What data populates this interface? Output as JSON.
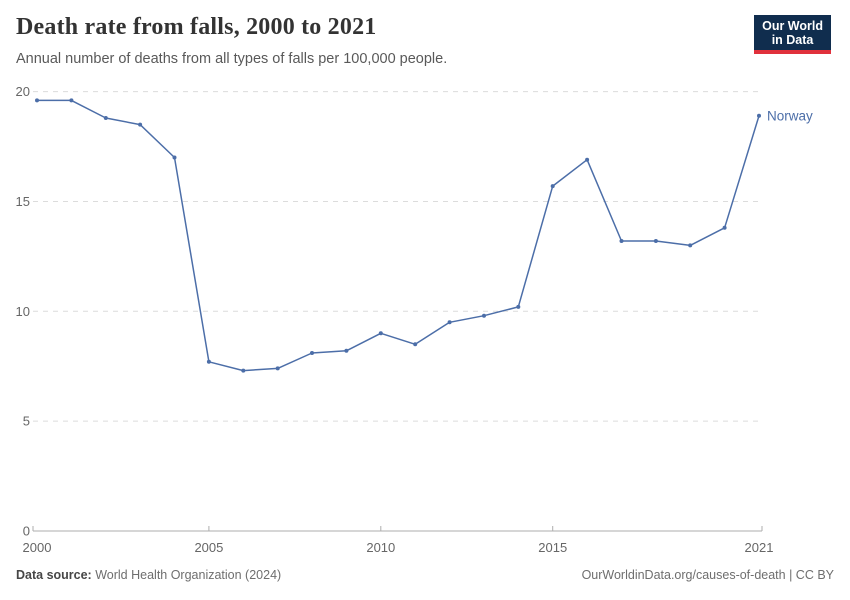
{
  "header": {
    "title": "Death rate from falls, 2000 to 2021",
    "subtitle": "Annual number of deaths from all types of falls per 100,000 people.",
    "logo": {
      "line1": "Our World",
      "line2": "in Data",
      "bg_color": "#102d4e",
      "accent_color": "#e0313c"
    }
  },
  "chart_data": {
    "type": "line",
    "title": "Death rate from falls, 2000 to 2021",
    "xlabel": "",
    "ylabel": "",
    "x": [
      2000,
      2001,
      2002,
      2003,
      2004,
      2005,
      2006,
      2007,
      2008,
      2009,
      2010,
      2011,
      2012,
      2013,
      2014,
      2015,
      2016,
      2017,
      2018,
      2019,
      2020,
      2021
    ],
    "series": [
      {
        "name": "Norway",
        "color": "#4c6ea8",
        "values": [
          19.6,
          19.6,
          18.8,
          18.5,
          17.0,
          7.7,
          7.3,
          7.4,
          8.1,
          8.2,
          9.0,
          8.5,
          9.5,
          9.8,
          10.2,
          15.7,
          16.9,
          13.2,
          13.2,
          13.0,
          13.8,
          18.9
        ]
      }
    ],
    "ylim": [
      0,
      20
    ],
    "yticks": [
      0,
      5,
      10,
      15,
      20
    ],
    "xticks": [
      2000,
      2005,
      2010,
      2015,
      2021
    ],
    "grid": "horizontal dashed",
    "legend_position": "end-of-line label",
    "gridline_color": "#dcdcdc",
    "axis_color": "#adadad",
    "tick_label_color": "#666666"
  },
  "footer": {
    "source_label": "Data source:",
    "source_value": "World Health Organization (2024)",
    "credit": "OurWorldinData.org/causes-of-death | CC BY"
  }
}
